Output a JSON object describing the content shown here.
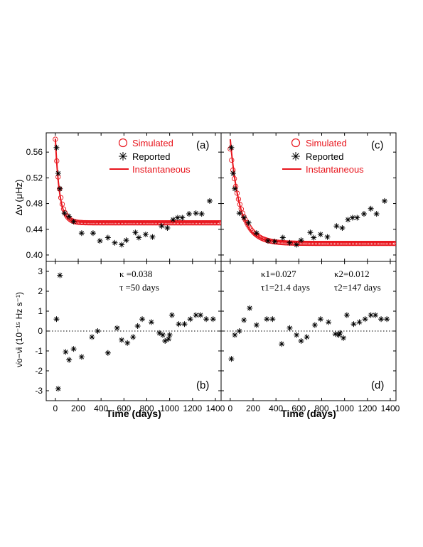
{
  "chart_data": [
    {
      "panel": "(a)",
      "type": "scatter",
      "xlim": [
        -80,
        1450
      ],
      "ylim": [
        0.39,
        0.59
      ],
      "ylabel": "Δν (μHz)",
      "yticks": [
        "0.40",
        "0.44",
        "0.48",
        "0.52",
        "0.56"
      ],
      "yticks_values": [
        0.4,
        0.44,
        0.48,
        0.52,
        0.56
      ],
      "legend": {
        "position": "top-right",
        "entries": [
          "Simulated",
          "Reported",
          "Instantaneous"
        ]
      },
      "series": [
        {
          "name": "Simulated",
          "marker": "circle",
          "color": "#e8141c",
          "model": {
            "base": 0.45,
            "amp": 0.13,
            "tau": 40,
            "t0": 0,
            "tmax": 1440,
            "step": 12
          }
        },
        {
          "name": "Instantaneous",
          "marker": "line",
          "color": "#e8141c",
          "model": {
            "base": 0.451,
            "amp": 0.13,
            "tau": 36,
            "t0": 0,
            "tmax": 1440
          }
        },
        {
          "name": "Reported",
          "marker": "asterisk",
          "color": "#000000",
          "x": [
            10,
            25,
            40,
            80,
            120,
            160,
            230,
            330,
            390,
            460,
            520,
            580,
            620,
            700,
            730,
            790,
            850,
            930,
            980,
            1030,
            1070,
            1110,
            1170,
            1230,
            1280,
            1350
          ],
          "y": [
            0.567,
            0.527,
            0.503,
            0.465,
            0.46,
            0.452,
            0.434,
            0.434,
            0.422,
            0.427,
            0.419,
            0.416,
            0.423,
            0.435,
            0.427,
            0.432,
            0.428,
            0.445,
            0.442,
            0.455,
            0.458,
            0.458,
            0.464,
            0.465,
            0.464,
            0.484
          ]
        }
      ]
    },
    {
      "panel": "(b)",
      "type": "scatter",
      "xlim": [
        -80,
        1450
      ],
      "ylim": [
        -3.5,
        3.5
      ],
      "xlabel": "Time (days)",
      "xticks": [
        "0",
        "200",
        "400",
        "600",
        "800",
        "1000",
        "1200",
        "1400"
      ],
      "xticks_values": [
        0,
        200,
        400,
        600,
        800,
        1000,
        1200,
        1400
      ],
      "ylabel": "ν̇o−ν̇i (10⁻¹⁵ Hz s⁻¹)",
      "yticks": [
        "-3",
        "-2",
        "-1",
        "0",
        "1",
        "2",
        "3"
      ],
      "yticks_values": [
        -3,
        -2,
        -1,
        0,
        1,
        2,
        3
      ],
      "zero_line": "dotted",
      "annotation_lines": [
        "κ =0.038",
        "τ =50 days"
      ],
      "series": [
        {
          "name": "Residual",
          "marker": "asterisk",
          "color": "#000000",
          "x": [
            10,
            25,
            40,
            90,
            120,
            160,
            230,
            320,
            370,
            460,
            540,
            580,
            630,
            680,
            720,
            760,
            840,
            910,
            940,
            960,
            990,
            1000,
            1020,
            1080,
            1130,
            1180,
            1230,
            1270,
            1320,
            1380
          ],
          "y": [
            0.6,
            -2.9,
            2.8,
            -1.05,
            -1.45,
            -0.9,
            -1.3,
            -0.3,
            0.0,
            -1.1,
            0.15,
            -0.45,
            -0.6,
            -0.3,
            0.25,
            0.6,
            0.45,
            -0.1,
            -0.2,
            -0.5,
            -0.4,
            -0.2,
            0.8,
            0.35,
            0.35,
            0.6,
            0.8,
            0.8,
            0.6,
            0.6
          ]
        }
      ]
    },
    {
      "panel": "(c)",
      "type": "scatter",
      "xlim": [
        -80,
        1450
      ],
      "ylim": [
        0.39,
        0.59
      ],
      "legend": {
        "position": "top-right",
        "entries": [
          "Simulated",
          "Reported",
          "Instantaneous"
        ]
      },
      "series": [
        {
          "name": "Simulated",
          "marker": "circle",
          "color": "#e8141c",
          "model": {
            "base": 0.418,
            "amp": 0.147,
            "tau": 95,
            "t0": 0,
            "tmax": 1440,
            "step": 12
          }
        },
        {
          "name": "Instantaneous",
          "marker": "line",
          "color": "#e8141c",
          "model": {
            "base": 0.42,
            "amp": 0.16,
            "tau": 82,
            "t0": 0,
            "tmax": 1440
          }
        },
        {
          "name": "Reported",
          "marker": "asterisk",
          "color": "#000000",
          "x": [
            10,
            25,
            40,
            80,
            120,
            160,
            230,
            330,
            390,
            460,
            520,
            580,
            620,
            700,
            730,
            790,
            850,
            930,
            980,
            1030,
            1070,
            1110,
            1170,
            1230,
            1280,
            1350
          ],
          "y": [
            0.567,
            0.527,
            0.503,
            0.465,
            0.458,
            0.45,
            0.434,
            0.422,
            0.421,
            0.427,
            0.419,
            0.416,
            0.423,
            0.435,
            0.427,
            0.432,
            0.428,
            0.445,
            0.442,
            0.455,
            0.458,
            0.458,
            0.464,
            0.472,
            0.464,
            0.484
          ]
        }
      ]
    },
    {
      "panel": "(d)",
      "type": "scatter",
      "xlim": [
        -80,
        1450
      ],
      "ylim": [
        -3.5,
        3.5
      ],
      "xlabel": "Time (days)",
      "xticks": [
        "0",
        "200",
        "400",
        "600",
        "800",
        "1000",
        "1200",
        "1400"
      ],
      "xticks_values": [
        0,
        200,
        400,
        600,
        800,
        1000,
        1200,
        1400
      ],
      "zero_line": "dotted",
      "annotation_lines": [
        "κ1=0.027",
        "τ1=21.4 days",
        "κ2=0.012",
        "τ2=147 days"
      ],
      "series": [
        {
          "name": "Residual",
          "marker": "asterisk",
          "color": "#000000",
          "x": [
            10,
            40,
            80,
            120,
            170,
            230,
            320,
            370,
            450,
            520,
            580,
            620,
            670,
            740,
            790,
            860,
            920,
            950,
            960,
            990,
            1020,
            1080,
            1130,
            1180,
            1230,
            1270,
            1320,
            1370
          ],
          "y": [
            -1.4,
            -0.2,
            0.0,
            0.55,
            1.15,
            0.3,
            0.6,
            0.6,
            -0.65,
            0.15,
            -0.2,
            -0.5,
            -0.3,
            0.3,
            0.6,
            0.45,
            -0.15,
            -0.2,
            -0.1,
            -0.35,
            0.8,
            0.35,
            0.45,
            0.6,
            0.8,
            0.8,
            0.6,
            0.6
          ]
        }
      ]
    }
  ]
}
